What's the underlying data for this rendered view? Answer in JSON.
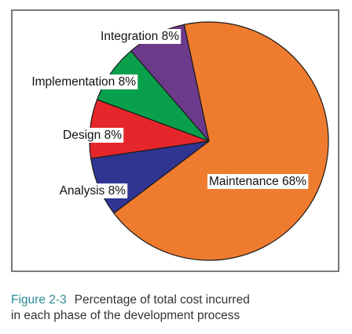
{
  "chart_data": {
    "type": "pie",
    "slices": [
      {
        "label": "Maintenance 68%",
        "value": 68,
        "color": "#ef7b2e"
      },
      {
        "label": "Analysis 8%",
        "value": 8,
        "color": "#2f3591"
      },
      {
        "label": "Design 8%",
        "value": 8,
        "color": "#e5272b"
      },
      {
        "label": "Implementation 8%",
        "value": 8,
        "color": "#0aa04b"
      },
      {
        "label": "Integration 8%",
        "value": 8,
        "color": "#6c3a8b"
      }
    ],
    "legend": "none"
  },
  "caption": {
    "figure_label": "Figure 2-3",
    "line1": "Percentage of total cost incurred",
    "line2": "in each phase of the development process"
  }
}
